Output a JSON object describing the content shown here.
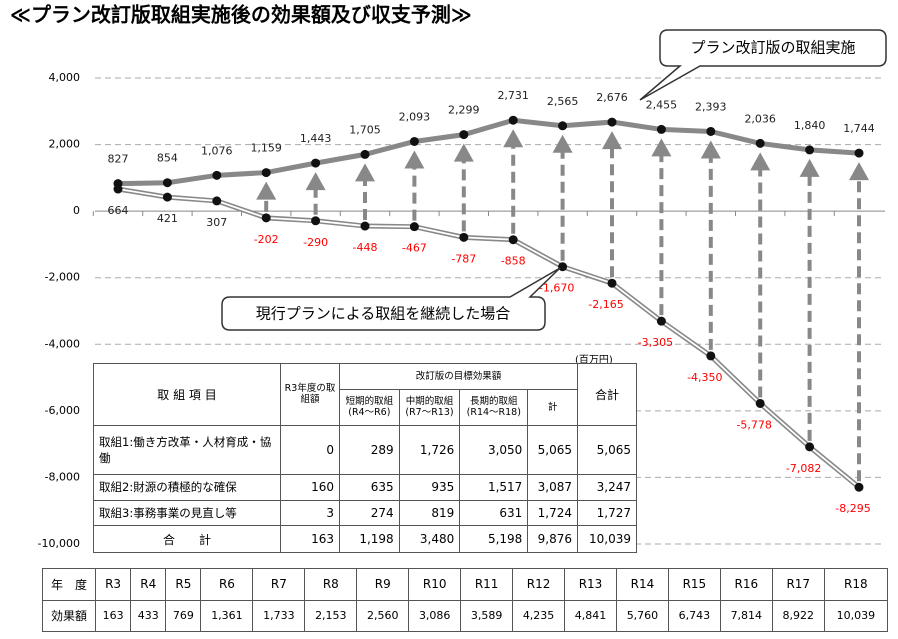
{
  "chart_data": {
    "type": "line",
    "title": "≪プラン改訂版取組実施後の効果額及び収支予測≫",
    "categories": [
      "R3",
      "R4",
      "R5",
      "R6",
      "R7",
      "R8",
      "R9",
      "R10",
      "R11",
      "R12",
      "R13",
      "R14",
      "R15",
      "R16",
      "R17",
      "R18"
    ],
    "series": [
      {
        "name": "プラン改訂版の取組実施",
        "color": "#888888",
        "values": [
          827,
          854,
          1076,
          1159,
          1443,
          1705,
          2093,
          2299,
          2731,
          2565,
          2676,
          2455,
          2393,
          2036,
          1840,
          1744
        ],
        "value_labels": [
          "827",
          "854",
          "1,076",
          "1,159",
          "1,443",
          "1,705",
          "2,093",
          "2,299",
          "2,731",
          "2,565",
          "2,676",
          "2,455",
          "2,393",
          "2,036",
          "1,840",
          "1,744"
        ]
      },
      {
        "name": "現行プランによる取組を継続した場合",
        "color": "#888888",
        "values": [
          664,
          421,
          307,
          -202,
          -290,
          -448,
          -467,
          -787,
          -858,
          -1670,
          -2165,
          -3305,
          -4350,
          -5778,
          -7082,
          -8295
        ],
        "value_labels": [
          "664",
          "421",
          "307",
          "-202",
          "-290",
          "-448",
          "-467",
          "-787",
          "-858",
          "-1,670",
          "-2,165",
          "-3,305",
          "-4,350",
          "-5,778",
          "-7,082",
          "-8,295"
        ]
      }
    ],
    "ylim": [
      -10000,
      4000
    ],
    "yticks": [
      {
        "value": -10000,
        "label": "-10,000"
      },
      {
        "value": -8000,
        "label": "-8,000"
      },
      {
        "value": -6000,
        "label": "-6,000"
      },
      {
        "value": -4000,
        "label": "-4,000"
      },
      {
        "value": -2000,
        "label": "-2,000"
      },
      0,
      {
        "value": 2000,
        "label": "2,000"
      },
      {
        "value": 4000,
        "label": "4,000"
      }
    ],
    "grid": true,
    "negative_label_color": "#ff0000"
  },
  "table": {
    "unit": "(百万円)",
    "header": {
      "item": "取 組 項 目",
      "r3": "R3年度の取組額",
      "group": "改訂版の目標効果額",
      "total": "合計",
      "sub": [
        [
          "短期的取組",
          "(R4～R6)"
        ],
        [
          "中期的取組",
          "(R7～R13)"
        ],
        [
          "長期的取組",
          "(R14～R18)"
        ],
        [
          "計",
          ""
        ]
      ]
    },
    "rows": [
      [
        "取組1:働き方改革・人材育成・協働",
        "0",
        "289",
        "1,726",
        "3,050",
        "5,065",
        "5,065"
      ],
      [
        "取組2:財源の積極的な確保",
        "160",
        "635",
        "935",
        "1,517",
        "3,087",
        "3,247"
      ],
      [
        "取組3:事務事業の見直し等",
        "3",
        "274",
        "819",
        "631",
        "1,724",
        "1,727"
      ],
      [
        "合　　計",
        "163",
        "1,198",
        "3,480",
        "5,198",
        "9,876",
        "10,039"
      ]
    ]
  },
  "effect_table": {
    "year_label": "年　度",
    "effect_label": "効果額",
    "values": [
      "163",
      "433",
      "769",
      "1,361",
      "1,733",
      "2,153",
      "2,560",
      "3,086",
      "3,589",
      "4,235",
      "4,841",
      "5,760",
      "6,743",
      "7,814",
      "8,922",
      "10,039"
    ]
  }
}
